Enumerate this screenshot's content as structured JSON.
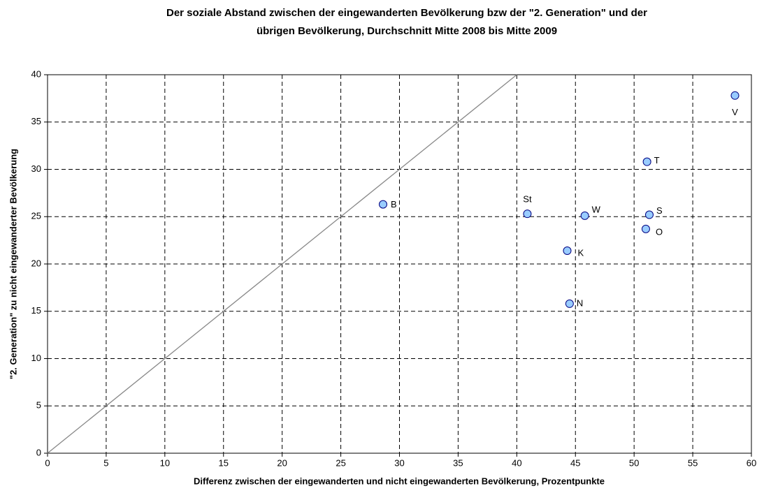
{
  "chart_data": {
    "type": "scatter",
    "title": [
      "Der soziale Abstand zwischen der eingewanderten Bevölkerung bzw der \"2. Generation\" und der",
      "übrigen Bevölkerung, Durchschnitt Mitte 2008 bis Mitte 2009"
    ],
    "x_label": "Differenz zwischen der eingewanderten und nicht eingewanderten Bevölkerung, Prozentpunkte",
    "y_label": "\"2. Generation\" zu nicht eingewanderter Bevölkerung",
    "xlim": [
      0,
      60
    ],
    "xticks": [
      0,
      5,
      10,
      15,
      20,
      25,
      30,
      35,
      40,
      45,
      50,
      55,
      60
    ],
    "ylim": [
      0,
      40
    ],
    "yticks": [
      0,
      5,
      10,
      15,
      20,
      25,
      30,
      35,
      40
    ],
    "grid": true,
    "series": [
      {
        "color": "#99ccff",
        "point_labels": [
          "B",
          "St",
          "W",
          "K",
          "N",
          "T",
          "S",
          "O",
          "V"
        ],
        "x": [
          28.6,
          40.9,
          45.8,
          44.3,
          44.5,
          51.1,
          51.3,
          51.0,
          58.6
        ],
        "values": [
          26.3,
          25.3,
          25.1,
          21.4,
          15.8,
          30.8,
          25.2,
          23.7,
          37.8
        ]
      }
    ]
  }
}
